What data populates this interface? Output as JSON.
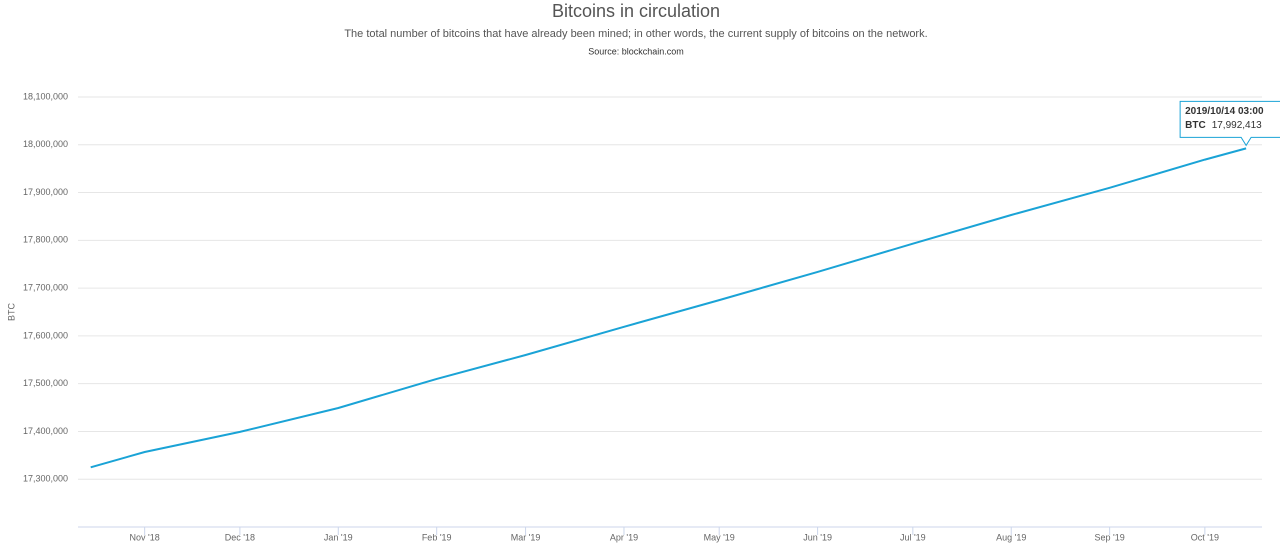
{
  "chart_data": {
    "type": "line",
    "title": "Bitcoins in circulation",
    "subtitle": "The total number of bitcoins that have already been mined; in other words, the current supply of bitcoins on the network.",
    "source": "Source: blockchain.com",
    "y_label": "BTC",
    "x": [
      "2018-10-15",
      "2018-11-01",
      "2018-12-01",
      "2019-01-01",
      "2019-02-01",
      "2019-03-01",
      "2019-04-01",
      "2019-05-01",
      "2019-06-01",
      "2019-07-01",
      "2019-08-01",
      "2019-09-01",
      "2019-10-01",
      "2019-10-14"
    ],
    "series": [
      {
        "name": "BTC",
        "color": "#1aa3d6",
        "values": [
          17325000,
          17357000,
          17399000,
          17449000,
          17510000,
          17560000,
          17619000,
          17675000,
          17734000,
          17793000,
          17853000,
          17910000,
          17969000,
          17992413
        ],
        "value_labels": [
          null,
          null,
          null,
          null,
          null,
          null,
          null,
          null,
          null,
          null,
          null,
          null,
          null,
          "17,992,413"
        ]
      }
    ],
    "tooltip_title": "2019/10/14 03:00",
    "xlim": [
      "2018-10-11",
      "2019-10-19"
    ],
    "xticks": [
      {
        "value": "2018-11-01",
        "label": "Nov '18"
      },
      {
        "value": "2018-12-01",
        "label": "Dec '18"
      },
      {
        "value": "2019-01-01",
        "label": "Jan '19"
      },
      {
        "value": "2019-02-01",
        "label": "Feb '19"
      },
      {
        "value": "2019-03-01",
        "label": "Mar '19"
      },
      {
        "value": "2019-04-01",
        "label": "Apr '19"
      },
      {
        "value": "2019-05-01",
        "label": "May '19"
      },
      {
        "value": "2019-06-01",
        "label": "Jun '19"
      },
      {
        "value": "2019-07-01",
        "label": "Jul '19"
      },
      {
        "value": "2019-08-01",
        "label": "Aug '19"
      },
      {
        "value": "2019-09-01",
        "label": "Sep '19"
      },
      {
        "value": "2019-10-01",
        "label": "Oct '19"
      }
    ],
    "ylim": [
      17200000,
      18100000
    ],
    "yticks": [
      {
        "value": 17300000,
        "label": "17,300,000"
      },
      {
        "value": 17400000,
        "label": "17,400,000"
      },
      {
        "value": 17500000,
        "label": "17,500,000"
      },
      {
        "value": 17600000,
        "label": "17,600,000"
      },
      {
        "value": 17700000,
        "label": "17,700,000"
      },
      {
        "value": 17800000,
        "label": "17,800,000"
      },
      {
        "value": 17900000,
        "label": "17,900,000"
      },
      {
        "value": 18000000,
        "label": "18,000,000"
      },
      {
        "value": 18100000,
        "label": "18,100,000"
      }
    ],
    "grid": true
  }
}
